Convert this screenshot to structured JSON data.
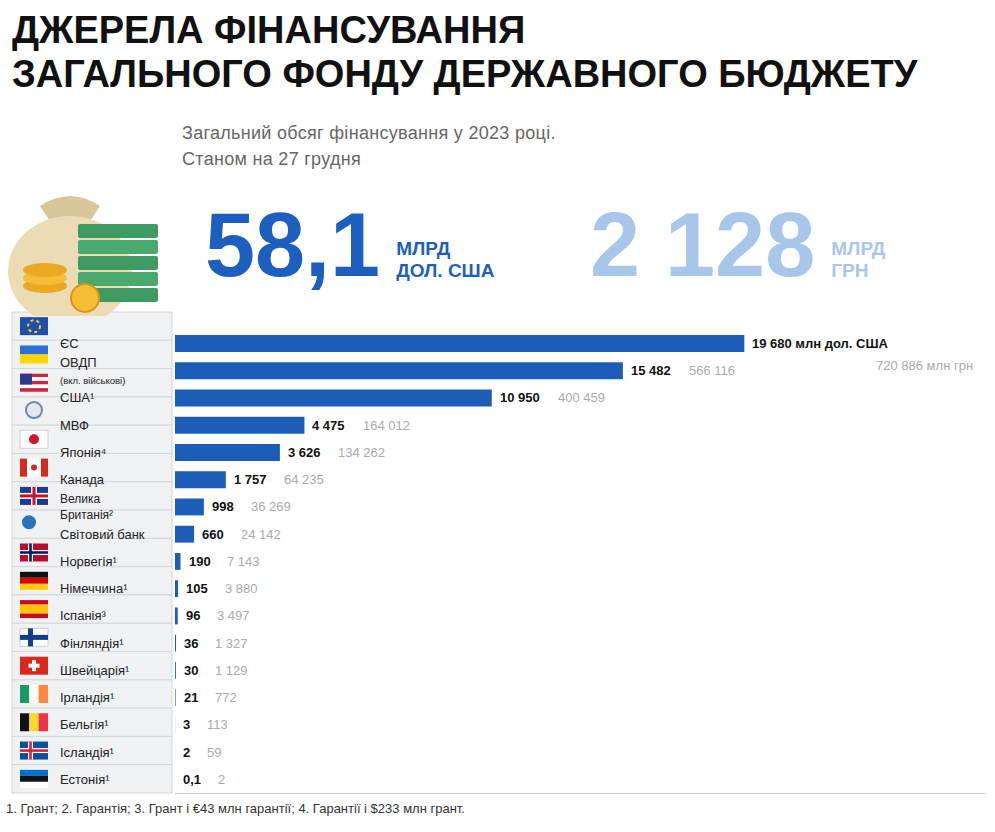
{
  "header": {
    "title": [
      "ДЖЕРЕЛА ФІНАНСУВАННЯ",
      "ЗАГАЛЬНОГО ФОНДУ ДЕРЖАВНОГО БЮДЖЕТУ"
    ],
    "subtitle": [
      "Загальний обсяг фінансування у 2023 році.",
      "Станом на 27 грудня"
    ],
    "totals": [
      {
        "text": "58,1",
        "unit": [
          "МЛРД",
          "ДОЛ. США"
        ]
      },
      {
        "text": "2 128",
        "unit": [
          "МЛРД",
          "ГРН"
        ]
      }
    ]
  },
  "chart_data": {
    "type": "bar",
    "orientation": "horizontal",
    "categories": [
      "ЄС",
      "ОВДП (вкл. військові)",
      "США¹",
      "МВФ",
      "Японія⁴",
      "Канада",
      "Велика Британія²",
      "Світовий банк",
      "Норвегія¹",
      "Німеччина¹",
      "Іспанія³",
      "Фінляндія¹",
      "Швейцарія¹",
      "Ірландія¹",
      "Бельгія¹",
      "Ісландія¹",
      "Естонія¹"
    ],
    "values": [
      19680,
      15482,
      10950,
      4475,
      3626,
      1757,
      998,
      660,
      190,
      105,
      96,
      36,
      30,
      21,
      3,
      2,
      0.1
    ],
    "value_labels": [
      "19 680 млн дол. США",
      "15 482",
      "10 950",
      "4 475",
      "3 626",
      "1 757",
      "998",
      "660",
      "190",
      "105",
      "96",
      "36",
      "30",
      "21",
      "3",
      "2",
      "0,1"
    ],
    "uah_labels": [
      "720 886 млн грн",
      "566 116",
      "400 459",
      "164 012",
      "134 262",
      "64 235",
      "36 269",
      "24 142",
      "7 143",
      "3 880",
      "3 497",
      "1 327",
      "1 129",
      "772",
      "113",
      "59",
      "2"
    ],
    "color": "#1c5db8",
    "xlim": [
      0,
      28000
    ],
    "xticks": [],
    "grid": false,
    "tick_labels": "y",
    "data_labels": true
  },
  "footnote": "1. Грант; 2. Гарантія; 3. Грант і €43 млн гарантії; 4. Гарантії і $233 млн грант."
}
